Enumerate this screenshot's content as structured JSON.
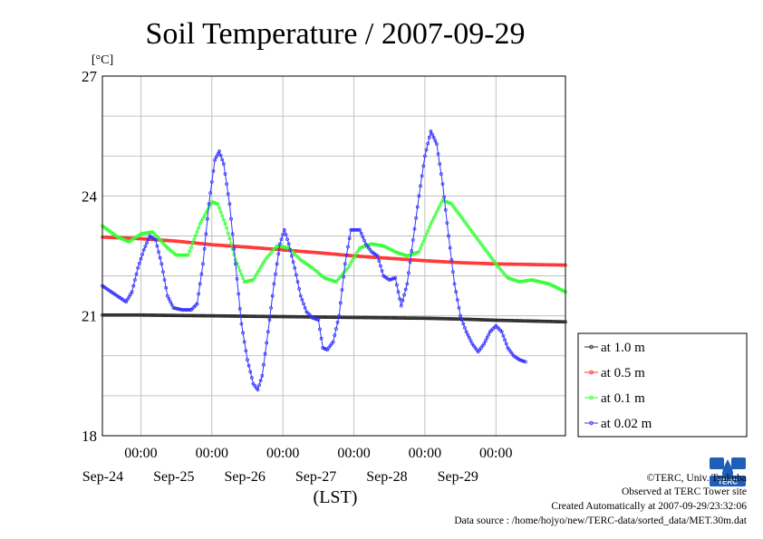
{
  "chart_data": {
    "type": "line",
    "title": "Soil Temperature / 2007-09-29",
    "yunit": "[°C]",
    "xlabel": "(LST)",
    "ylim": [
      18,
      27
    ],
    "yticks": [
      "27",
      "24",
      "21",
      "18"
    ],
    "xlim": [
      "2007-09-23 11:00",
      "2007-09-29 23:30"
    ],
    "time_tick_label": "00:00",
    "date_labels": [
      "Sep-24",
      "Sep-25",
      "Sep-26",
      "Sep-27",
      "Sep-28",
      "Sep-29"
    ],
    "grid": true,
    "legend_position": "right",
    "series": [
      {
        "name": "at 1.0 m",
        "color": "#2b2b2b",
        "points": [
          [
            "2007-09-23 11:00",
            21.02
          ],
          [
            "2007-09-24 00:00",
            21.02
          ],
          [
            "2007-09-25 00:00",
            21.0
          ],
          [
            "2007-09-26 00:00",
            20.98
          ],
          [
            "2007-09-27 00:00",
            20.96
          ],
          [
            "2007-09-28 00:00",
            20.94
          ],
          [
            "2007-09-28 12:00",
            20.92
          ],
          [
            "2007-09-29 00:00",
            20.89
          ],
          [
            "2007-09-29 23:30",
            20.85
          ]
        ]
      },
      {
        "name": "at 0.5 m",
        "color": "#ff3333",
        "points": [
          [
            "2007-09-23 11:00",
            22.97
          ],
          [
            "2007-09-24 00:00",
            22.93
          ],
          [
            "2007-09-24 12:00",
            22.87
          ],
          [
            "2007-09-25 00:00",
            22.78
          ],
          [
            "2007-09-25 12:00",
            22.72
          ],
          [
            "2007-09-26 00:00",
            22.65
          ],
          [
            "2007-09-26 12:00",
            22.58
          ],
          [
            "2007-09-27 00:00",
            22.5
          ],
          [
            "2007-09-27 12:00",
            22.44
          ],
          [
            "2007-09-28 00:00",
            22.38
          ],
          [
            "2007-09-28 12:00",
            22.33
          ],
          [
            "2007-09-29 00:00",
            22.3
          ],
          [
            "2007-09-29 23:30",
            22.27
          ]
        ]
      },
      {
        "name": "at 0.1 m",
        "color": "#33ff33",
        "points": [
          [
            "2007-09-23 11:00",
            23.25
          ],
          [
            "2007-09-23 16:00",
            22.98
          ],
          [
            "2007-09-23 20:00",
            22.85
          ],
          [
            "2007-09-24 00:00",
            23.05
          ],
          [
            "2007-09-24 04:00",
            23.1
          ],
          [
            "2007-09-24 09:00",
            22.7
          ],
          [
            "2007-09-24 12:00",
            22.52
          ],
          [
            "2007-09-24 16:00",
            22.52
          ],
          [
            "2007-09-24 20:00",
            23.3
          ],
          [
            "2007-09-25 00:00",
            23.85
          ],
          [
            "2007-09-25 02:00",
            23.8
          ],
          [
            "2007-09-25 05:00",
            23.2
          ],
          [
            "2007-09-25 08:00",
            22.4
          ],
          [
            "2007-09-25 11:00",
            21.85
          ],
          [
            "2007-09-25 14:00",
            21.9
          ],
          [
            "2007-09-25 18:00",
            22.4
          ],
          [
            "2007-09-25 22:00",
            22.75
          ],
          [
            "2007-09-26 02:00",
            22.7
          ],
          [
            "2007-09-26 06:00",
            22.4
          ],
          [
            "2007-09-26 10:00",
            22.2
          ],
          [
            "2007-09-26 14:00",
            21.95
          ],
          [
            "2007-09-26 18:00",
            21.85
          ],
          [
            "2007-09-26 22:00",
            22.2
          ],
          [
            "2007-09-27 02:00",
            22.7
          ],
          [
            "2007-09-27 06:00",
            22.8
          ],
          [
            "2007-09-27 10:00",
            22.75
          ],
          [
            "2007-09-27 14:00",
            22.6
          ],
          [
            "2007-09-27 18:00",
            22.5
          ],
          [
            "2007-09-27 22:00",
            22.6
          ],
          [
            "2007-09-28 02:00",
            23.3
          ],
          [
            "2007-09-28 06:00",
            23.9
          ],
          [
            "2007-09-28 09:00",
            23.8
          ],
          [
            "2007-09-28 14:00",
            23.3
          ],
          [
            "2007-09-28 19:00",
            22.8
          ],
          [
            "2007-09-29 00:00",
            22.3
          ],
          [
            "2007-09-29 04:00",
            21.95
          ],
          [
            "2007-09-29 08:00",
            21.85
          ],
          [
            "2007-09-29 12:00",
            21.9
          ],
          [
            "2007-09-29 18:00",
            21.8
          ],
          [
            "2007-09-29 23:30",
            21.6
          ]
        ]
      },
      {
        "name": "at 0.02 m",
        "color": "#3333ff",
        "points": [
          [
            "2007-09-23 11:00",
            21.75
          ],
          [
            "2007-09-23 15:00",
            21.55
          ],
          [
            "2007-09-23 19:00",
            21.35
          ],
          [
            "2007-09-23 21:00",
            21.6
          ],
          [
            "2007-09-23 23:00",
            22.2
          ],
          [
            "2007-09-24 01:00",
            22.65
          ],
          [
            "2007-09-24 03:00",
            23.0
          ],
          [
            "2007-09-24 05:00",
            22.9
          ],
          [
            "2007-09-24 07:00",
            22.3
          ],
          [
            "2007-09-24 09:00",
            21.5
          ],
          [
            "2007-09-24 11:00",
            21.2
          ],
          [
            "2007-09-24 14:00",
            21.15
          ],
          [
            "2007-09-24 17:00",
            21.15
          ],
          [
            "2007-09-24 19:00",
            21.3
          ],
          [
            "2007-09-24 21:00",
            22.3
          ],
          [
            "2007-09-24 23:00",
            23.8
          ],
          [
            "2007-09-25 01:00",
            24.9
          ],
          [
            "2007-09-25 02:30",
            25.12
          ],
          [
            "2007-09-25 04:00",
            24.8
          ],
          [
            "2007-09-25 06:00",
            23.8
          ],
          [
            "2007-09-25 08:00",
            22.3
          ],
          [
            "2007-09-25 10:00",
            20.8
          ],
          [
            "2007-09-25 12:00",
            19.9
          ],
          [
            "2007-09-25 14:00",
            19.3
          ],
          [
            "2007-09-25 15:30",
            19.15
          ],
          [
            "2007-09-25 17:00",
            19.5
          ],
          [
            "2007-09-25 19:00",
            20.6
          ],
          [
            "2007-09-25 21:00",
            21.8
          ],
          [
            "2007-09-25 23:00",
            22.8
          ],
          [
            "2007-09-26 00:30",
            23.15
          ],
          [
            "2007-09-26 02:00",
            22.8
          ],
          [
            "2007-09-26 04:00",
            22.2
          ],
          [
            "2007-09-26 06:00",
            21.5
          ],
          [
            "2007-09-26 08:00",
            21.1
          ],
          [
            "2007-09-26 10:00",
            20.95
          ],
          [
            "2007-09-26 12:00",
            20.9
          ],
          [
            "2007-09-26 13:30",
            20.2
          ],
          [
            "2007-09-26 15:00",
            20.15
          ],
          [
            "2007-09-26 17:00",
            20.35
          ],
          [
            "2007-09-26 19:00",
            21.0
          ],
          [
            "2007-09-26 21:00",
            22.3
          ],
          [
            "2007-09-26 23:00",
            23.15
          ],
          [
            "2007-09-27 02:00",
            23.15
          ],
          [
            "2007-09-27 04:00",
            22.8
          ],
          [
            "2007-09-27 06:00",
            22.6
          ],
          [
            "2007-09-27 08:00",
            22.5
          ],
          [
            "2007-09-27 10:00",
            22.0
          ],
          [
            "2007-09-27 12:00",
            21.9
          ],
          [
            "2007-09-27 14:00",
            21.95
          ],
          [
            "2007-09-27 16:00",
            21.25
          ],
          [
            "2007-09-27 18:00",
            21.8
          ],
          [
            "2007-09-27 20:00",
            22.9
          ],
          [
            "2007-09-27 22:00",
            24.0
          ],
          [
            "2007-09-28 00:00",
            25.0
          ],
          [
            "2007-09-28 02:00",
            25.62
          ],
          [
            "2007-09-28 04:00",
            25.3
          ],
          [
            "2007-09-28 06:00",
            24.3
          ],
          [
            "2007-09-28 08:00",
            23.0
          ],
          [
            "2007-09-28 10:00",
            21.8
          ],
          [
            "2007-09-28 12:00",
            21.0
          ],
          [
            "2007-09-28 14:00",
            20.6
          ],
          [
            "2007-09-28 16:00",
            20.3
          ],
          [
            "2007-09-28 18:00",
            20.1
          ],
          [
            "2007-09-28 20:00",
            20.3
          ],
          [
            "2007-09-28 22:00",
            20.6
          ],
          [
            "2007-09-29 00:00",
            20.75
          ],
          [
            "2007-09-29 02:00",
            20.6
          ],
          [
            "2007-09-29 04:00",
            20.2
          ],
          [
            "2007-09-29 06:00",
            20.0
          ],
          [
            "2007-09-29 08:00",
            19.9
          ],
          [
            "2007-09-29 10:00",
            19.85
          ]
        ]
      }
    ]
  },
  "footer": {
    "copyright": "©TERC, Univ. Tsukuba",
    "observed": "Observed at TERC Tower site",
    "created": "Created Automatically at 2007-09-29/23:32:06",
    "source": "Data source : /home/hojyo/new/TERC-data/sorted_data/MET.30m.dat"
  },
  "logo": {
    "name": "terc-logo",
    "text": "TERC",
    "color": "#1f5fb8"
  }
}
